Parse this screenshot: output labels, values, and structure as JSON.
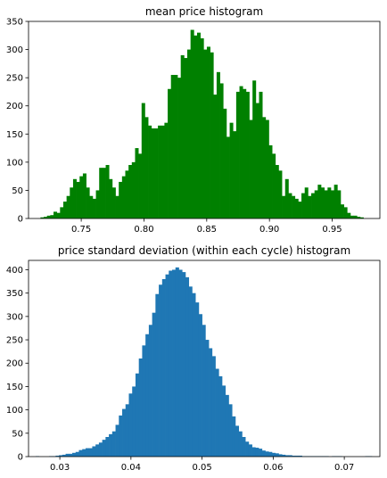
{
  "chart_data": [
    {
      "type": "bar",
      "title": "mean price histogram",
      "color": "#008000",
      "xlim": [
        0.708,
        0.988
      ],
      "ylim": [
        0,
        350
      ],
      "xticks": [
        0.75,
        0.8,
        0.85,
        0.9,
        0.95
      ],
      "xtick_labels": [
        "0.75",
        "0.80",
        "0.85",
        "0.90",
        "0.95"
      ],
      "yticks": [
        0,
        50,
        100,
        150,
        200,
        250,
        300,
        350
      ],
      "ytick_labels": [
        "0",
        "50",
        "100",
        "150",
        "200",
        "250",
        "300",
        "350"
      ],
      "bin_start": 0.7175,
      "bin_width": 0.0026,
      "counts": [
        2,
        3,
        5,
        6,
        12,
        10,
        20,
        30,
        40,
        55,
        70,
        65,
        75,
        80,
        55,
        40,
        35,
        50,
        90,
        90,
        95,
        70,
        55,
        40,
        65,
        75,
        85,
        95,
        100,
        125,
        115,
        205,
        180,
        165,
        160,
        160,
        165,
        165,
        170,
        230,
        255,
        255,
        250,
        290,
        285,
        300,
        335,
        325,
        330,
        320,
        300,
        305,
        295,
        220,
        260,
        240,
        195,
        145,
        170,
        155,
        225,
        235,
        230,
        225,
        175,
        245,
        205,
        225,
        180,
        175,
        130,
        115,
        95,
        85,
        40,
        70,
        45,
        40,
        35,
        30,
        45,
        55,
        40,
        45,
        50,
        60,
        55,
        50,
        55,
        50,
        60,
        50,
        25,
        20,
        10,
        5,
        5,
        3,
        2
      ]
    },
    {
      "type": "bar",
      "title": "price standard deviation (within each cycle) histogram",
      "color": "#1f77b4",
      "xlim": [
        0.0256,
        0.075
      ],
      "ylim": [
        0,
        420
      ],
      "xticks": [
        0.03,
        0.04,
        0.05,
        0.06,
        0.07
      ],
      "xtick_labels": [
        "0.03",
        "0.04",
        "0.05",
        "0.06",
        "0.07"
      ],
      "yticks": [
        0,
        50,
        100,
        150,
        200,
        250,
        300,
        350,
        400
      ],
      "ytick_labels": [
        "0",
        "50",
        "100",
        "150",
        "200",
        "250",
        "300",
        "350",
        "400"
      ],
      "bin_start": 0.0266,
      "bin_width": 0.000468,
      "counts": [
        1,
        0,
        0,
        0,
        1,
        1,
        2,
        3,
        4,
        6,
        6,
        8,
        10,
        14,
        16,
        18,
        18,
        22,
        26,
        30,
        36,
        42,
        48,
        54,
        68,
        88,
        102,
        112,
        135,
        150,
        178,
        210,
        238,
        262,
        282,
        308,
        348,
        368,
        380,
        390,
        398,
        400,
        405,
        400,
        395,
        384,
        364,
        350,
        330,
        305,
        282,
        250,
        232,
        215,
        188,
        172,
        152,
        132,
        112,
        86,
        66,
        54,
        42,
        32,
        26,
        20,
        19,
        17,
        13,
        11,
        10,
        8,
        7,
        5,
        4,
        3,
        3,
        2,
        2,
        2,
        1,
        1,
        1,
        1,
        1,
        1,
        1,
        1,
        0,
        1,
        1,
        1,
        0,
        0,
        0,
        0,
        0,
        0,
        0,
        1,
        1
      ]
    }
  ]
}
